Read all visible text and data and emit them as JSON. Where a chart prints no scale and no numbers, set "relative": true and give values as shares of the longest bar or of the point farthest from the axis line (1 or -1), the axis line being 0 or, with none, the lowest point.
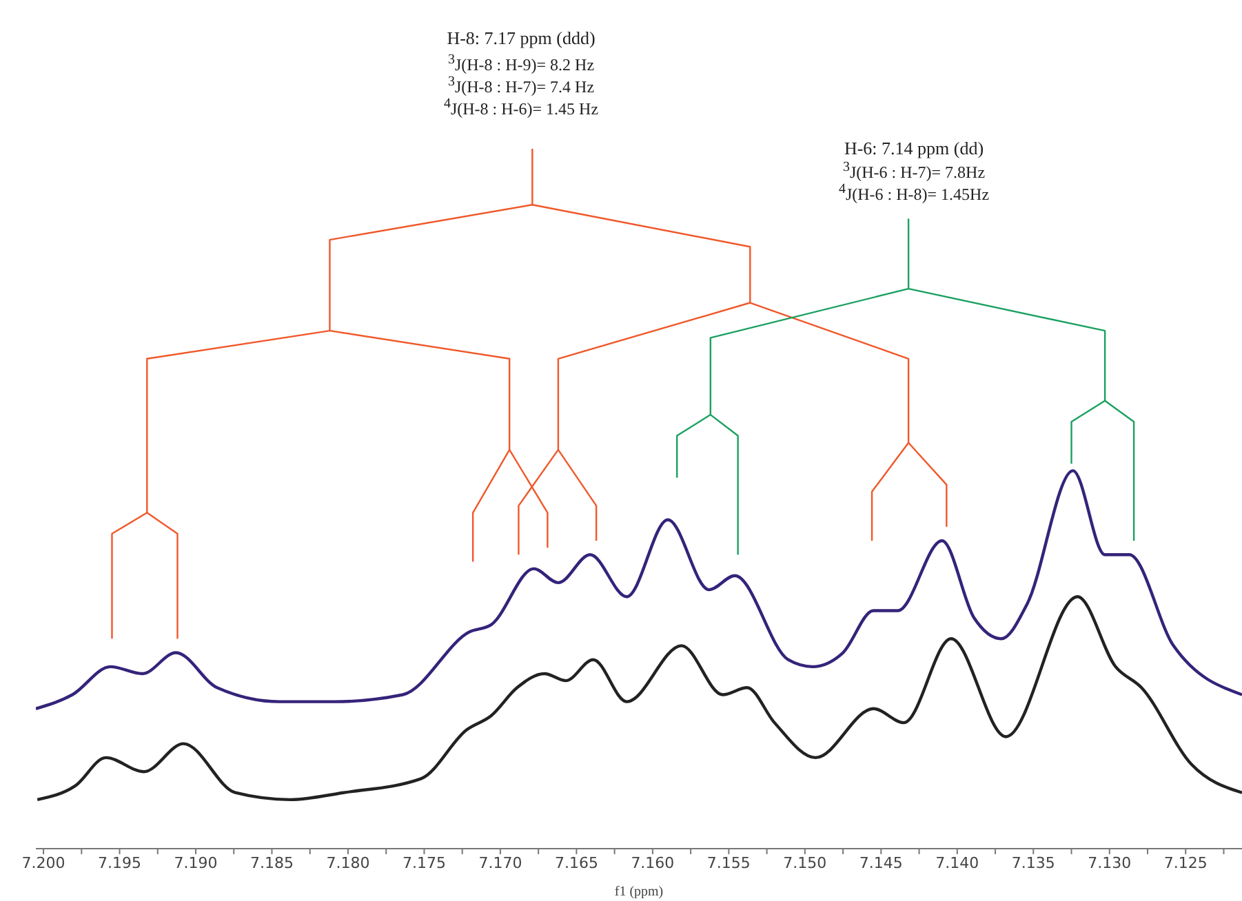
{
  "chart_data": {
    "type": "line",
    "relative": true,
    "xlabel": "f1 (ppm)",
    "xlim": [
      7.2005,
      7.1213
    ],
    "xticks": [
      {
        "value": 7.2,
        "label": "7.200"
      },
      {
        "value": 7.1975,
        "label": null
      },
      {
        "value": 7.195,
        "label": "7.195"
      },
      {
        "value": 7.1925,
        "label": null
      },
      {
        "value": 7.19,
        "label": "7.190"
      },
      {
        "value": 7.1875,
        "label": null
      },
      {
        "value": 7.185,
        "label": "7.185"
      },
      {
        "value": 7.1825,
        "label": null
      },
      {
        "value": 7.18,
        "label": "7.180"
      },
      {
        "value": 7.1775,
        "label": null
      },
      {
        "value": 7.175,
        "label": "7.175"
      },
      {
        "value": 7.1725,
        "label": null
      },
      {
        "value": 7.17,
        "label": "7.170"
      },
      {
        "value": 7.1675,
        "label": null
      },
      {
        "value": 7.165,
        "label": "7.165"
      },
      {
        "value": 7.1625,
        "label": null
      },
      {
        "value": 7.16,
        "label": "7.160"
      },
      {
        "value": 7.1575,
        "label": null
      },
      {
        "value": 7.155,
        "label": "7.155"
      },
      {
        "value": 7.1525,
        "label": null
      },
      {
        "value": 7.15,
        "label": "7.150"
      },
      {
        "value": 7.1475,
        "label": null
      },
      {
        "value": 7.145,
        "label": "7.145"
      },
      {
        "value": 7.1425,
        "label": null
      },
      {
        "value": 7.14,
        "label": "7.140"
      },
      {
        "value": 7.1375,
        "label": null
      },
      {
        "value": 7.135,
        "label": "7.135"
      },
      {
        "value": 7.1325,
        "label": null
      },
      {
        "value": 7.13,
        "label": "7.130"
      },
      {
        "value": 7.1275,
        "label": null
      },
      {
        "value": 7.125,
        "label": "7.125"
      },
      {
        "value": 7.1225,
        "label": null
      }
    ],
    "marker": "none",
    "line_style": "solid",
    "series": [
      {
        "color": "#35237a",
        "x": [
          7.2005,
          7.1981,
          7.1956,
          7.1935,
          7.1913,
          7.1886,
          7.1845,
          7.1809,
          7.1764,
          7.172,
          7.1706,
          7.1678,
          7.1662,
          7.1641,
          7.1617,
          7.159,
          7.1563,
          7.1546,
          7.1511,
          7.1495,
          7.1475,
          7.1455,
          7.1439,
          7.141,
          7.1389,
          7.1371,
          7.1354,
          7.1324,
          7.1303,
          7.1287,
          7.1258,
          7.1213
        ],
        "values": [
          0.2,
          0.22,
          0.26,
          0.25,
          0.28,
          0.23,
          0.21,
          0.21,
          0.22,
          0.31,
          0.32,
          0.4,
          0.38,
          0.42,
          0.36,
          0.47,
          0.37,
          0.39,
          0.27,
          0.26,
          0.28,
          0.34,
          0.34,
          0.44,
          0.33,
          0.3,
          0.35,
          0.54,
          0.42,
          0.42,
          0.29,
          0.22
        ]
      },
      {
        "color": "#222222",
        "x": [
          7.2004,
          7.1979,
          7.1959,
          7.1934,
          7.1908,
          7.1874,
          7.1838,
          7.1803,
          7.1752,
          7.1722,
          7.1706,
          7.1689,
          7.1671,
          7.1657,
          7.1639,
          7.1617,
          7.1581,
          7.1554,
          7.1538,
          7.152,
          7.1493,
          7.1455,
          7.1435,
          7.1404,
          7.1368,
          7.1321,
          7.1296,
          7.1279,
          7.1246,
          7.1213
        ],
        "values": [
          0.07,
          0.09,
          0.13,
          0.11,
          0.15,
          0.08,
          0.07,
          0.08,
          0.1,
          0.17,
          0.19,
          0.23,
          0.25,
          0.24,
          0.27,
          0.21,
          0.29,
          0.22,
          0.23,
          0.18,
          0.13,
          0.2,
          0.18,
          0.3,
          0.16,
          0.36,
          0.26,
          0.23,
          0.12,
          0.08
        ]
      },
      {
        "color": "#f0582a",
        "x": [
          7.1679,
          7.1679,
          7.1812,
          7.1812,
          7.1932,
          7.1932,
          7.1955,
          7.1955
        ],
        "values": [
          1.0,
          0.92,
          0.87,
          0.74,
          0.7,
          0.48,
          0.45,
          0.3
        ]
      },
      {
        "color": "#f0582a",
        "x": [
          7.1932,
          7.1912,
          7.1912
        ],
        "values": [
          0.48,
          0.45,
          0.3
        ]
      },
      {
        "color": "#f0582a",
        "x": [
          7.1812,
          7.1694,
          7.1694,
          7.1718,
          7.1718
        ],
        "values": [
          0.74,
          0.7,
          0.57,
          0.48,
          0.41
        ]
      },
      {
        "color": "#f0582a",
        "x": [
          7.1694,
          7.1669,
          7.1669
        ],
        "values": [
          0.57,
          0.48,
          0.43
        ]
      },
      {
        "color": "#f0582a",
        "x": [
          7.1679,
          7.1536,
          7.1536,
          7.1662,
          7.1662,
          7.1688,
          7.1688
        ],
        "values": [
          0.92,
          0.86,
          0.78,
          0.7,
          0.57,
          0.49,
          0.42
        ]
      },
      {
        "color": "#f0582a",
        "x": [
          7.1662,
          7.1637,
          7.1637
        ],
        "values": [
          0.57,
          0.49,
          0.44
        ]
      },
      {
        "color": "#f0582a",
        "x": [
          7.1536,
          7.1432,
          7.1432,
          7.1456,
          7.1456
        ],
        "values": [
          0.78,
          0.7,
          0.58,
          0.51,
          0.44
        ]
      },
      {
        "color": "#f0582a",
        "x": [
          7.1432,
          7.1407,
          7.1407
        ],
        "values": [
          0.58,
          0.52,
          0.46
        ]
      },
      {
        "color": "#1aa060",
        "x": [
          7.1432,
          7.1432,
          7.1562,
          7.1562,
          7.1584,
          7.1584
        ],
        "values": [
          0.9,
          0.8,
          0.73,
          0.62,
          0.59,
          0.53
        ]
      },
      {
        "color": "#1aa060",
        "x": [
          7.1562,
          7.1544,
          7.1544
        ],
        "values": [
          0.62,
          0.59,
          0.42
        ]
      },
      {
        "color": "#1aa060",
        "x": [
          7.1432,
          7.1303,
          7.1303,
          7.1325,
          7.1325
        ],
        "values": [
          0.8,
          0.74,
          0.64,
          0.61,
          0.55
        ]
      },
      {
        "color": "#1aa060",
        "x": [
          7.1303,
          7.1284,
          7.1284
        ],
        "values": [
          0.64,
          0.61,
          0.44
        ]
      }
    ],
    "annotations": [
      "H-8: 7.17 ppm (ddd)",
      "$^{3}$J(H-8 : H-9)= 8.2 Hz",
      "$^{3}$J(H-8 : H-7)= 7.4 Hz",
      "$^{4}$J(H-8 : H-6)= 1.45 Hz",
      "H-6: 7.14 ppm (dd)",
      "$^{3}$J(H-6 : H-7)= 7.8Hz",
      "$^{4}$J(H-6 : H-8)= 1.45Hz"
    ]
  }
}
